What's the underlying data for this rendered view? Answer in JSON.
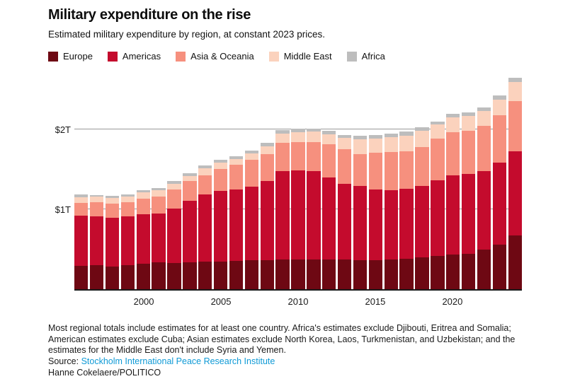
{
  "title": "Military expenditure on the rise",
  "subtitle": "Estimated military expenditure by region, at constant 2023 prices.",
  "legend": {
    "items": [
      {
        "label": "Europe",
        "color": "#6e0813"
      },
      {
        "label": "Americas",
        "color": "#c40b2d"
      },
      {
        "label": "Asia & Oceania",
        "color": "#f6907e"
      },
      {
        "label": "Middle East",
        "color": "#fbd2bd"
      },
      {
        "label": "Africa",
        "color": "#bdbdbd"
      }
    ]
  },
  "chart_data": {
    "type": "bar",
    "stacked": true,
    "unit": "billion USD, constant 2023 prices",
    "x": [
      1996,
      1997,
      1998,
      1999,
      2000,
      2001,
      2002,
      2003,
      2004,
      2005,
      2006,
      2007,
      2008,
      2009,
      2010,
      2011,
      2012,
      2013,
      2014,
      2015,
      2016,
      2017,
      2018,
      2019,
      2020,
      2021,
      2022,
      2023,
      2024
    ],
    "series": [
      {
        "name": "Europe",
        "color": "#6e0813",
        "values": [
          295,
          305,
          285,
          300,
          315,
          335,
          330,
          335,
          345,
          345,
          355,
          360,
          365,
          375,
          375,
          375,
          375,
          370,
          365,
          365,
          375,
          385,
          395,
          420,
          435,
          440,
          495,
          560,
          670
        ]
      },
      {
        "name": "Americas",
        "color": "#c40b2d",
        "values": [
          630,
          605,
          605,
          615,
          620,
          610,
          680,
          770,
          845,
          885,
          895,
          920,
          990,
          1100,
          1115,
          1100,
          1020,
          950,
          925,
          885,
          865,
          875,
          895,
          945,
          990,
          1000,
          980,
          1020,
          1060
        ]
      },
      {
        "name": "Asia & Oceania",
        "color": "#f6907e",
        "values": [
          155,
          175,
          185,
          175,
          200,
          215,
          235,
          245,
          235,
          275,
          305,
          340,
          335,
          355,
          350,
          370,
          415,
          435,
          405,
          455,
          475,
          465,
          490,
          520,
          540,
          545,
          570,
          600,
          625
        ]
      },
      {
        "name": "Middle East",
        "color": "#fbd2bd",
        "values": [
          75,
          70,
          65,
          70,
          75,
          80,
          75,
          65,
          85,
          75,
          75,
          75,
          100,
          120,
          125,
          125,
          130,
          135,
          185,
          185,
          190,
          195,
          200,
          175,
          185,
          185,
          185,
          195,
          235
        ]
      },
      {
        "name": "Africa",
        "color": "#bdbdbd",
        "values": [
          30,
          25,
          30,
          30,
          30,
          25,
          30,
          35,
          35,
          35,
          35,
          35,
          40,
          40,
          40,
          40,
          40,
          40,
          40,
          40,
          45,
          50,
          45,
          40,
          45,
          40,
          45,
          50,
          60
        ]
      }
    ],
    "yticks": [
      {
        "label": "$1T",
        "value": 1000
      },
      {
        "label": "$2T",
        "value": 2000
      }
    ],
    "xticks": [
      2000,
      2005,
      2010,
      2015,
      2020
    ],
    "ylim": [
      0,
      2752
    ],
    "grid": true,
    "legend_position": "top"
  },
  "footnote": "Most regional totals include estimates for at least one country. Africa's estimates exclude Djibouti, Eritrea and Somalia; American estimates exclude Cuba; Asian estimates exclude North Korea, Laos, Turkmenistan, and Uzbekistan; and the estimates for the Middle East don't include Syria and Yemen.",
  "source": {
    "label": "Source: ",
    "link_text": "Stockholm International Peace Research Institute"
  },
  "byline": "Hanne Cokelaere/POLITICO",
  "colors": {
    "axis": "#1a1a1a",
    "gridline": "#9a9a9a",
    "link": "#0f9ad6",
    "background": "#ffffff"
  }
}
